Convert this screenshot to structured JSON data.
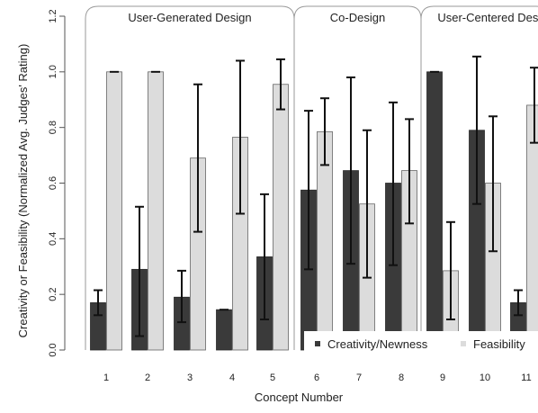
{
  "chart_data": {
    "type": "bar",
    "xlabel": "Concept Number",
    "ylabel": "Creativity or Feasibility  (Normalized Avg. Judges' Rating)",
    "ylim": [
      0,
      1.2
    ],
    "yticks": [
      "0.0",
      "0.2",
      "0.4",
      "0.6",
      "0.8",
      "1.0",
      "1.2"
    ],
    "categories": [
      "1",
      "2",
      "3",
      "4",
      "5",
      "6",
      "7",
      "8",
      "9",
      "10",
      "11"
    ],
    "series": [
      {
        "name": "Creativity/Newness",
        "color": "#3a3a3a",
        "values": [
          0.17,
          0.29,
          0.19,
          0.145,
          0.335,
          0.575,
          0.645,
          0.6,
          1.0,
          0.79,
          0.17
        ],
        "err_low": [
          0.125,
          0.05,
          0.1,
          0.145,
          0.11,
          0.29,
          0.31,
          0.305,
          1.0,
          0.525,
          0.125
        ],
        "err_high": [
          0.215,
          0.515,
          0.285,
          0.145,
          0.56,
          0.86,
          0.98,
          0.89,
          1.0,
          1.055,
          0.215
        ]
      },
      {
        "name": "Feasibility",
        "color": "#dcdcdc",
        "values": [
          1.0,
          1.0,
          0.69,
          0.765,
          0.955,
          0.785,
          0.525,
          0.645,
          0.285,
          0.6,
          0.88
        ],
        "err_low": [
          1.0,
          1.0,
          0.425,
          0.49,
          0.865,
          0.665,
          0.26,
          0.455,
          0.11,
          0.355,
          0.745
        ],
        "err_high": [
          1.0,
          1.0,
          0.955,
          1.04,
          1.045,
          0.905,
          0.79,
          0.83,
          0.46,
          0.84,
          1.015
        ]
      }
    ],
    "groups": [
      {
        "label": "User-Generated Design",
        "categories": [
          "1",
          "2",
          "3",
          "4",
          "5"
        ]
      },
      {
        "label": "Co-Design",
        "categories": [
          "6",
          "7",
          "8"
        ]
      },
      {
        "label": "User-Centered Design",
        "categories": [
          "9",
          "10",
          "11"
        ]
      }
    ],
    "legend": {
      "position": "bottom-right",
      "items": [
        "Creativity/Newness",
        "Feasibility"
      ]
    },
    "grid": false
  }
}
